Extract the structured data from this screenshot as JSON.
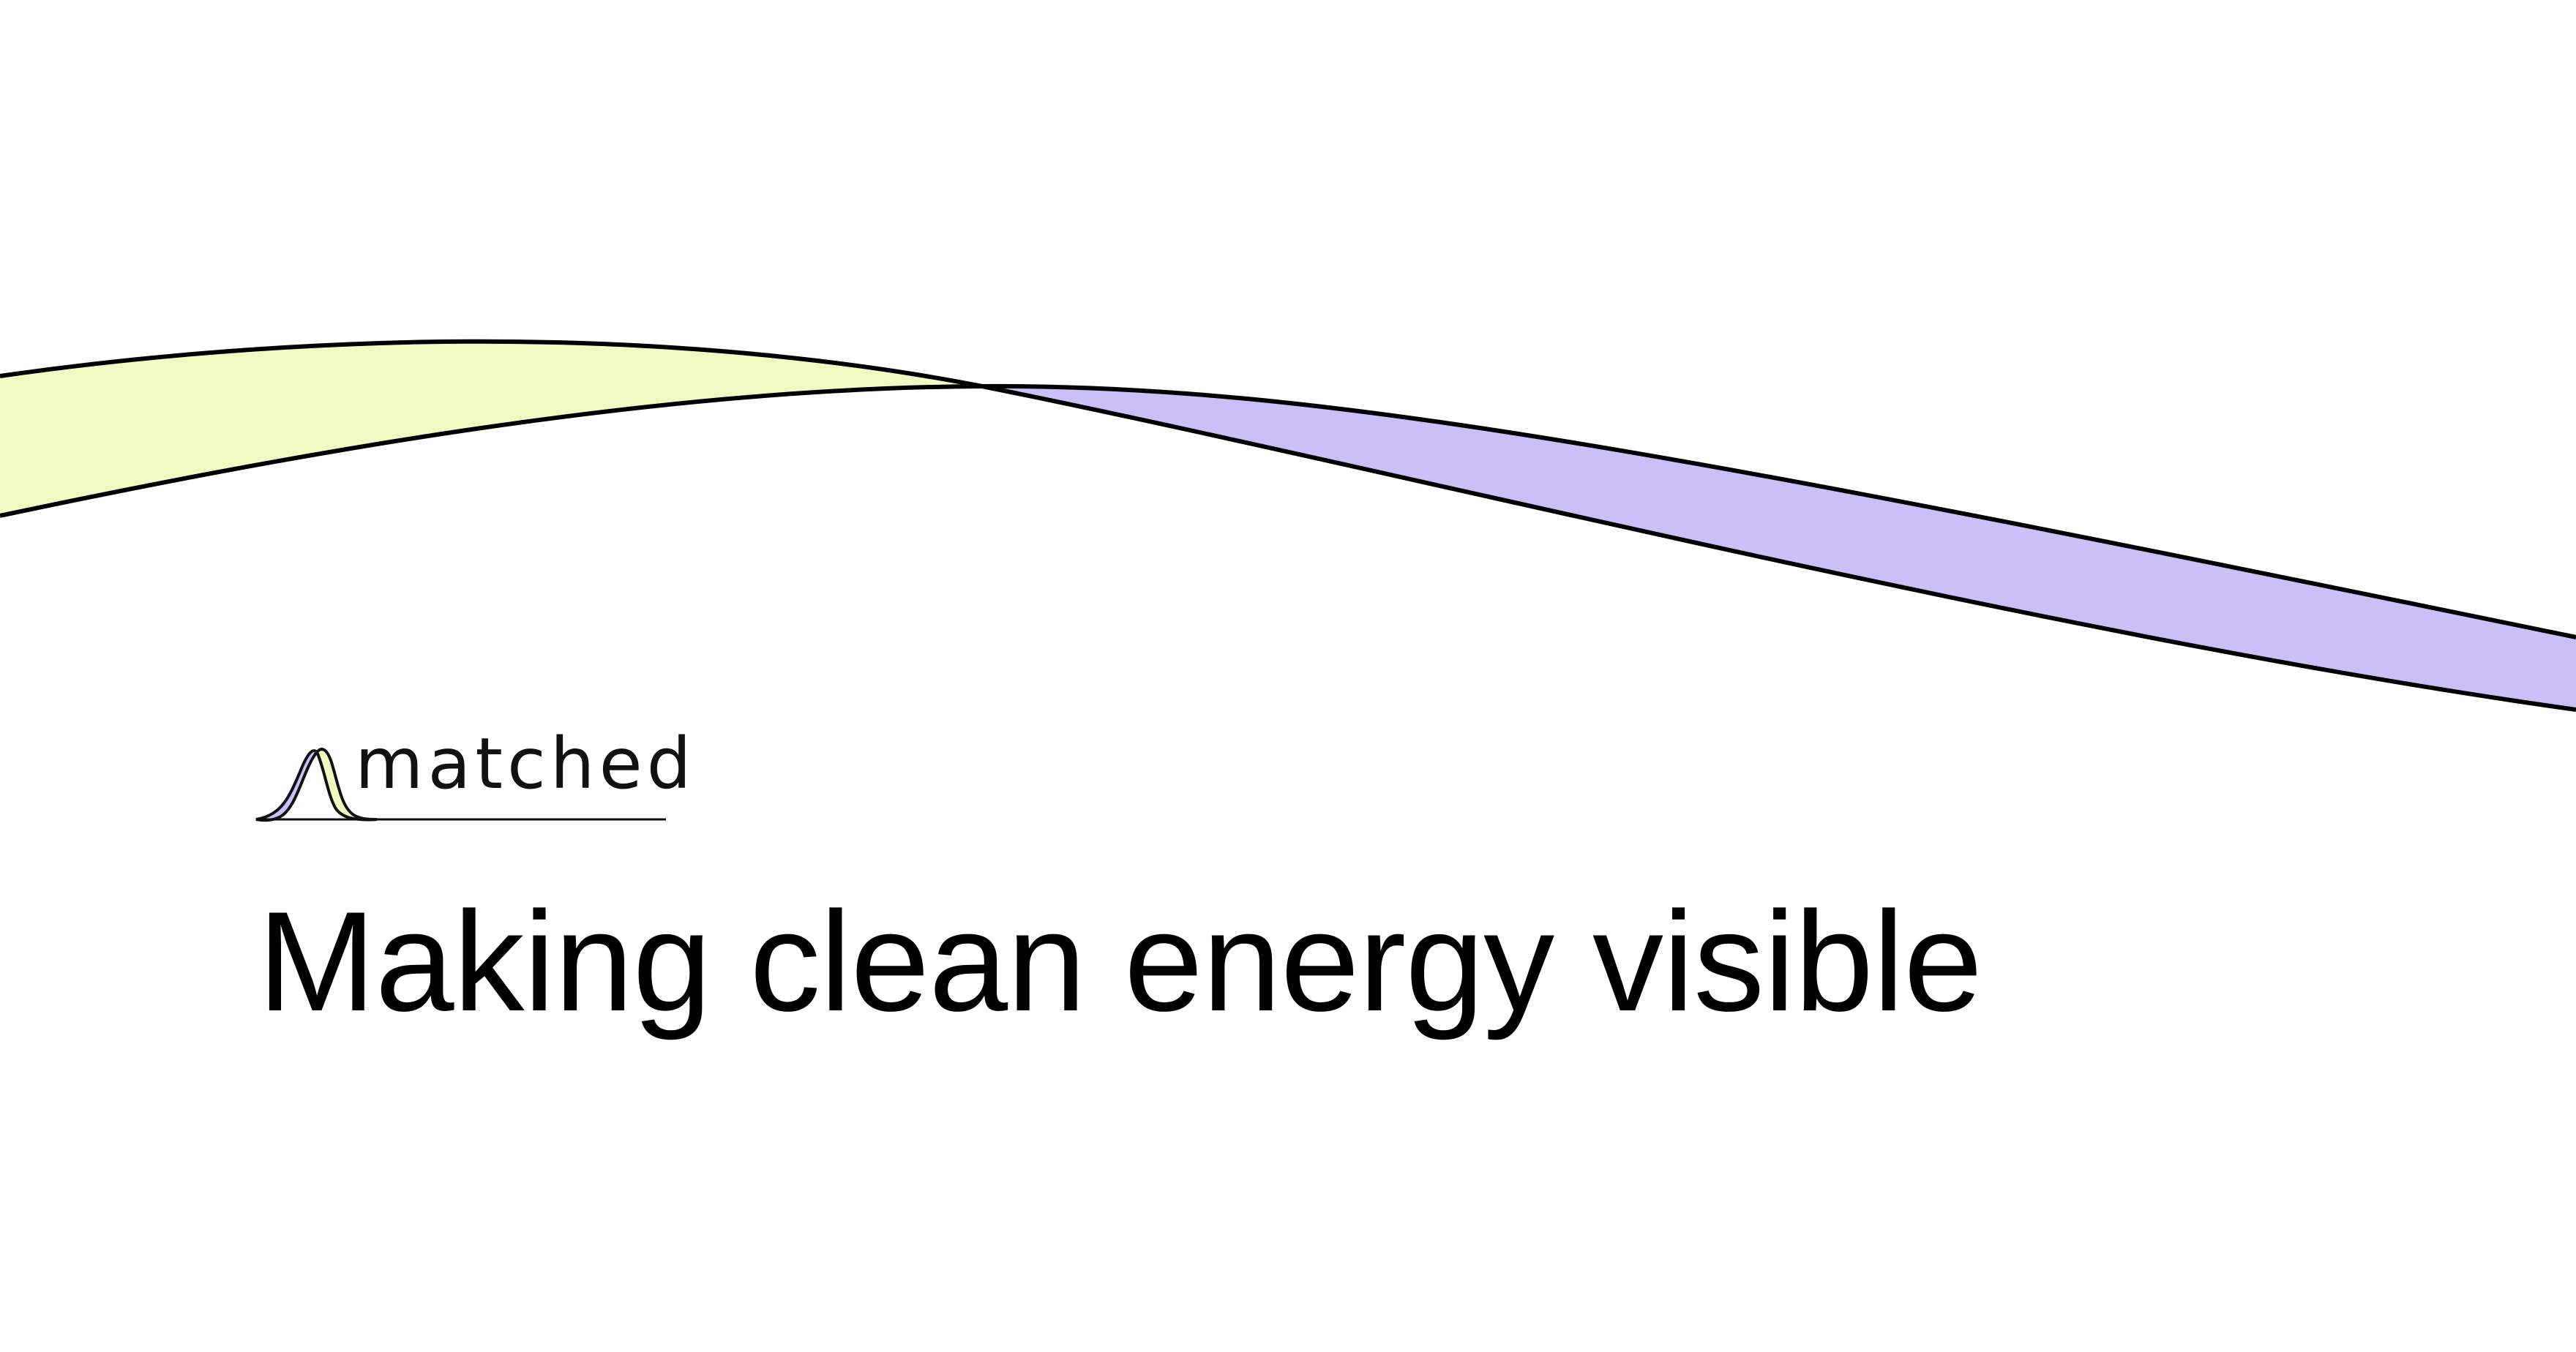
{
  "brand": {
    "name": "matched",
    "colors": {
      "lime": "#eefcc4",
      "lavender": "#cbbff8",
      "stroke": "#000000"
    }
  },
  "hero": {
    "headline": "Making clean energy visible"
  }
}
